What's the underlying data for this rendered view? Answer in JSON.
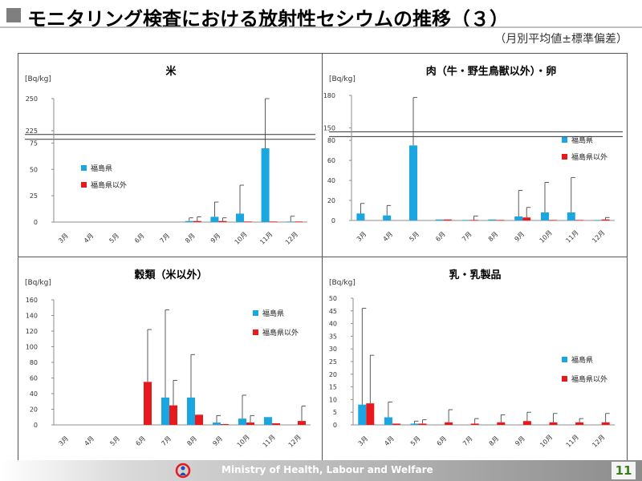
{
  "header": {
    "title": "モニタリング検査における放射性セシウムの推移（３）",
    "subtitle": "（月別平均値±標準偏差）"
  },
  "footer": {
    "ministry": "Ministry of Health, Labour and Welfare",
    "page": "11"
  },
  "colors": {
    "fukushima": "#1aa6e0",
    "other": "#e8191c"
  },
  "chart_data": [
    {
      "type": "bar",
      "title": "米",
      "ylabel": "[Bq/kg]",
      "categories": [
        "3月",
        "4月",
        "5月",
        "6月",
        "7月",
        "8月",
        "9月",
        "10月",
        "11月",
        "12月"
      ],
      "yticks": [
        0,
        25,
        50,
        75,
        225,
        250
      ],
      "axis_break": [
        85,
        215
      ],
      "legend_position": "left",
      "series": [
        {
          "name": "福島県",
          "values": [
            null,
            null,
            null,
            null,
            null,
            1,
            5,
            8,
            70,
            0.5
          ],
          "errors": [
            null,
            null,
            null,
            null,
            null,
            3,
            14,
            27,
            180,
            5
          ]
        },
        {
          "name": "福島県以外",
          "values": [
            null,
            null,
            null,
            null,
            null,
            1,
            1,
            0.5,
            0.5,
            0.5
          ],
          "errors": [
            null,
            null,
            null,
            null,
            null,
            4,
            3,
            0,
            0,
            0
          ]
        }
      ]
    },
    {
      "type": "bar",
      "title": "肉（牛・野生鳥獣以外）・卵",
      "ylabel": "[Bq/kg]",
      "categories": [
        "3月",
        "4月",
        "5月",
        "6月",
        "7月",
        "8月",
        "9月",
        "10月",
        "11月",
        "12月"
      ],
      "yticks": [
        0,
        20,
        40,
        60,
        80,
        150,
        180
      ],
      "axis_break": [
        85,
        140
      ],
      "legend_position": "right",
      "series": [
        {
          "name": "福島県",
          "values": [
            7,
            5,
            75,
            1,
            0.5,
            1,
            4,
            8,
            8,
            0.5
          ],
          "errors": [
            10,
            10,
            103,
            0,
            0,
            0,
            26,
            30,
            35,
            0
          ]
        },
        {
          "name": "福島県以外",
          "values": [
            null,
            null,
            null,
            1,
            0.5,
            0.5,
            3,
            0.5,
            0.5,
            1
          ],
          "errors": [
            null,
            null,
            null,
            0,
            4,
            0,
            10,
            0,
            0,
            2
          ]
        }
      ]
    },
    {
      "type": "bar",
      "title": "穀類（米以外）",
      "ylabel": "[Bq/kg]",
      "categories": [
        "3月",
        "4月",
        "5月",
        "6月",
        "7月",
        "8月",
        "9月",
        "10月",
        "11月",
        "12月"
      ],
      "yticks": [
        0,
        20,
        40,
        60,
        80,
        100,
        120,
        140,
        160
      ],
      "legend_position": "right",
      "series": [
        {
          "name": "福島県",
          "values": [
            null,
            null,
            null,
            null,
            35,
            35,
            3,
            8,
            10,
            null
          ],
          "errors": [
            null,
            null,
            null,
            null,
            112,
            55,
            9,
            30,
            0,
            null
          ]
        },
        {
          "name": "福島県以外",
          "values": [
            null,
            null,
            null,
            55,
            25,
            13,
            1,
            3,
            2,
            5
          ],
          "errors": [
            null,
            null,
            null,
            67,
            32,
            0,
            0,
            9,
            0,
            19
          ]
        }
      ]
    },
    {
      "type": "bar",
      "title": "乳・乳製品",
      "ylabel": "[Bq/kg]",
      "categories": [
        "3月",
        "4月",
        "5月",
        "6月",
        "7月",
        "8月",
        "9月",
        "10月",
        "11月",
        "12月"
      ],
      "yticks": [
        0,
        5,
        10,
        15,
        20,
        25,
        30,
        35,
        40,
        45,
        50
      ],
      "legend_position": "right",
      "series": [
        {
          "name": "福島県",
          "values": [
            8,
            3,
            0.5,
            null,
            null,
            null,
            null,
            null,
            null,
            null
          ],
          "errors": [
            38,
            6,
            1,
            null,
            null,
            null,
            null,
            null,
            null,
            null
          ]
        },
        {
          "name": "福島県以外",
          "values": [
            8.5,
            0.5,
            0.5,
            1,
            0.5,
            1,
            1.5,
            1,
            1,
            1
          ],
          "errors": [
            19,
            0,
            1.5,
            5,
            2,
            3,
            3.5,
            3.5,
            1.5,
            3.5
          ]
        }
      ]
    }
  ]
}
